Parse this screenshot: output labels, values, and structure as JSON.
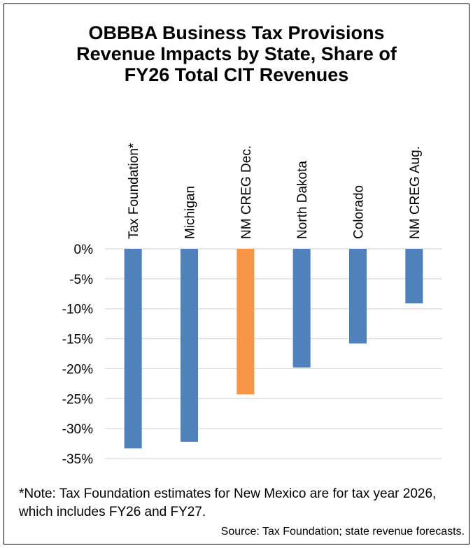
{
  "title_lines": [
    "OBBBA Business Tax Provisions",
    "Revenue Impacts by State, Share of",
    "FY26 Total CIT Revenues"
  ],
  "note": "*Note: Tax Foundation estimates for New Mexico are for tax year 2026, which includes FY26 and FY27.",
  "source": "Source: Tax Foundation; state revenue forecasts.",
  "colors": {
    "default_bar": "#4F81BD",
    "highlight_bar": "#F79646",
    "grid": "#D9D9D9"
  },
  "chart_data": {
    "type": "bar",
    "categories": [
      "Tax Foundation*",
      "Michigan",
      "NM CREG Dec.",
      "North Dakota",
      "Colorado",
      "NM CREG Aug."
    ],
    "values": [
      -33.3,
      -32.2,
      -24.3,
      -19.8,
      -15.8,
      -9.1
    ],
    "highlight": [
      false,
      false,
      true,
      false,
      false,
      false
    ],
    "ylim": [
      -35,
      0
    ],
    "yticks": [
      0,
      -5,
      -10,
      -15,
      -20,
      -25,
      -30,
      -35
    ],
    "ytick_labels": [
      "0%",
      "-5%",
      "-10%",
      "-15%",
      "-20%",
      "-25%",
      "-30%",
      "-35%"
    ],
    "grid": true,
    "category_label_position": "top, rotated vertical"
  }
}
